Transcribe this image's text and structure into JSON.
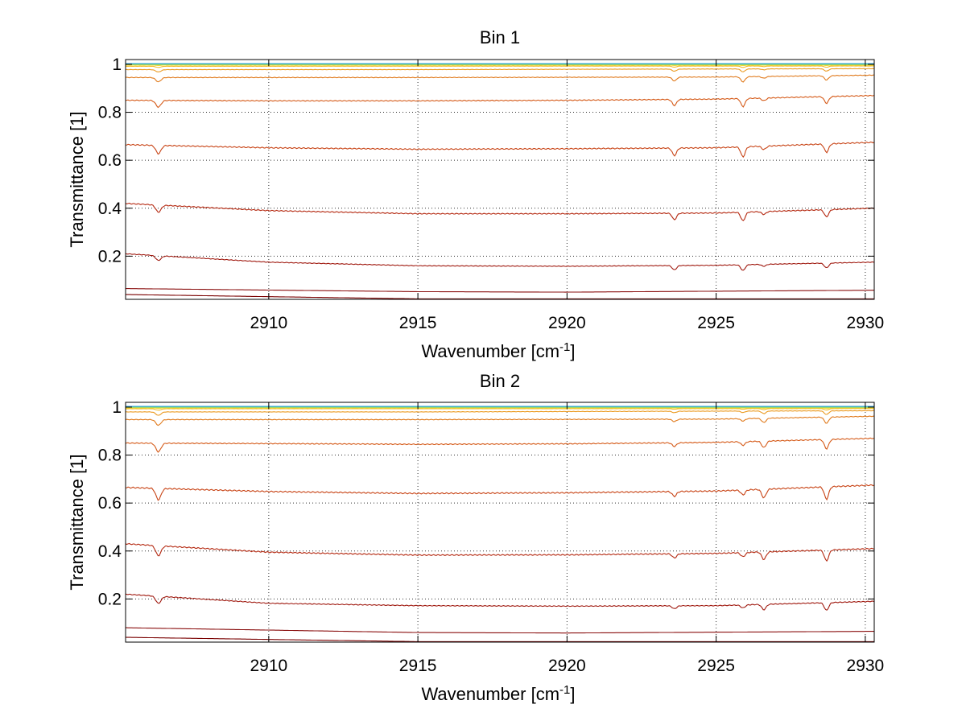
{
  "chart_data": [
    {
      "type": "line",
      "title": "Bin 1",
      "xlabel": "Wavenumber [cm",
      "xlabel_sup": "-1",
      "xlabel_end": "]",
      "ylabel": "Transmittance [1]",
      "xlim": [
        2905.2,
        2930.3
      ],
      "ylim": [
        0.02,
        1.02
      ],
      "xticks": [
        2910,
        2915,
        2920,
        2925,
        2930
      ],
      "yticks": [
        0.2,
        0.4,
        0.6,
        0.8,
        1
      ],
      "xtick_labels": [
        "2910",
        "2915",
        "2920",
        "2925",
        "2930"
      ],
      "ytick_labels": [
        "0.2",
        "0.4",
        "0.6",
        "0.8",
        "1"
      ],
      "grid": true,
      "dips": [
        {
          "x": 2906.3,
          "w": 0.12,
          "rel": 1.0
        },
        {
          "x": 2923.6,
          "w": 0.1,
          "rel": 0.9
        },
        {
          "x": 2925.9,
          "w": 0.1,
          "rel": 1.2
        },
        {
          "x": 2926.6,
          "w": 0.1,
          "rel": 0.4
        },
        {
          "x": 2928.7,
          "w": 0.1,
          "rel": 1.0
        }
      ],
      "series": [
        {
          "baseline": [
            [
              2905.2,
              0.04
            ],
            [
              2915,
              0.022
            ],
            [
              2930.3,
              0.022
            ]
          ],
          "depth": 0.0,
          "color": "#7a0000"
        },
        {
          "baseline": [
            [
              2905.2,
              0.065
            ],
            [
              2915,
              0.052
            ],
            [
              2920,
              0.05
            ],
            [
              2930.3,
              0.058
            ]
          ],
          "depth": 0.0,
          "color": "#8a0f0f"
        },
        {
          "baseline": [
            [
              2905.2,
              0.21
            ],
            [
              2910,
              0.175
            ],
            [
              2915,
              0.16
            ],
            [
              2920,
              0.158
            ],
            [
              2925,
              0.162
            ],
            [
              2930.3,
              0.175
            ]
          ],
          "depth": 0.02,
          "color": "#a01a10"
        },
        {
          "baseline": [
            [
              2905.2,
              0.42
            ],
            [
              2910,
              0.39
            ],
            [
              2915,
              0.377
            ],
            [
              2920,
              0.377
            ],
            [
              2925,
              0.38
            ],
            [
              2930.3,
              0.4
            ]
          ],
          "depth": 0.03,
          "color": "#b52a12"
        },
        {
          "baseline": [
            [
              2905.2,
              0.665
            ],
            [
              2910,
              0.652
            ],
            [
              2915,
              0.646
            ],
            [
              2920,
              0.648
            ],
            [
              2925,
              0.652
            ],
            [
              2930.3,
              0.675
            ]
          ],
          "depth": 0.035,
          "color": "#c84416"
        },
        {
          "baseline": [
            [
              2905.2,
              0.85
            ],
            [
              2910,
              0.848
            ],
            [
              2915,
              0.848
            ],
            [
              2920,
              0.85
            ],
            [
              2925,
              0.855
            ],
            [
              2930.3,
              0.87
            ]
          ],
          "depth": 0.028,
          "color": "#d55a18"
        },
        {
          "baseline": [
            [
              2905.2,
              0.945
            ],
            [
              2915,
              0.945
            ],
            [
              2925,
              0.947
            ],
            [
              2930.3,
              0.955
            ]
          ],
          "depth": 0.018,
          "color": "#e07a1c"
        },
        {
          "baseline": [
            [
              2905.2,
              0.978
            ],
            [
              2915,
              0.978
            ],
            [
              2930.3,
              0.982
            ]
          ],
          "depth": 0.01,
          "color": "#eb9a20"
        },
        {
          "baseline": [
            [
              2905.2,
              0.992
            ],
            [
              2930.3,
              0.993
            ]
          ],
          "depth": 0.005,
          "color": "#f2bb26"
        },
        {
          "baseline": [
            [
              2905.2,
              0.997
            ],
            [
              2930.3,
              0.997
            ]
          ],
          "depth": 0.002,
          "color": "#f6d830"
        },
        {
          "baseline": [
            [
              2905.2,
              0.999
            ],
            [
              2930.3,
              0.999
            ]
          ],
          "depth": 0.001,
          "color": "#d4e640"
        },
        {
          "baseline": [
            [
              2905.2,
              1.0
            ],
            [
              2930.3,
              1.0
            ]
          ],
          "depth": 0.0,
          "color": "#6fd080"
        },
        {
          "baseline": [
            [
              2905.2,
              1.003
            ],
            [
              2930.3,
              1.003
            ]
          ],
          "depth": 0.0,
          "color": "#2aa0d8"
        }
      ]
    },
    {
      "type": "line",
      "title": "Bin 2",
      "xlabel": "Wavenumber [cm",
      "xlabel_sup": "-1",
      "xlabel_end": "]",
      "ylabel": "Transmittance [1]",
      "xlim": [
        2905.2,
        2930.3
      ],
      "ylim": [
        0.02,
        1.02
      ],
      "xticks": [
        2910,
        2915,
        2920,
        2925,
        2930
      ],
      "yticks": [
        0.2,
        0.4,
        0.6,
        0.8,
        1
      ],
      "xtick_labels": [
        "2910",
        "2915",
        "2920",
        "2925",
        "2930"
      ],
      "ytick_labels": [
        "0.2",
        "0.4",
        "0.6",
        "0.8",
        "1"
      ],
      "grid": true,
      "dips": [
        {
          "x": 2906.3,
          "w": 0.12,
          "rel": 1.2
        },
        {
          "x": 2923.6,
          "w": 0.1,
          "rel": 0.5
        },
        {
          "x": 2925.9,
          "w": 0.1,
          "rel": 0.5
        },
        {
          "x": 2926.6,
          "w": 0.1,
          "rel": 0.9
        },
        {
          "x": 2928.7,
          "w": 0.1,
          "rel": 1.3
        }
      ],
      "series": [
        {
          "baseline": [
            [
              2905.2,
              0.04
            ],
            [
              2915,
              0.022
            ],
            [
              2930.3,
              0.022
            ]
          ],
          "depth": 0.0,
          "color": "#7a0000"
        },
        {
          "baseline": [
            [
              2905.2,
              0.08
            ],
            [
              2915,
              0.06
            ],
            [
              2920,
              0.058
            ],
            [
              2930.3,
              0.065
            ]
          ],
          "depth": 0.0,
          "color": "#8a0f0f"
        },
        {
          "baseline": [
            [
              2905.2,
              0.22
            ],
            [
              2910,
              0.182
            ],
            [
              2915,
              0.172
            ],
            [
              2920,
              0.17
            ],
            [
              2925,
              0.172
            ],
            [
              2930.3,
              0.19
            ]
          ],
          "depth": 0.025,
          "color": "#a01a10"
        },
        {
          "baseline": [
            [
              2905.2,
              0.43
            ],
            [
              2910,
              0.395
            ],
            [
              2915,
              0.383
            ],
            [
              2920,
              0.384
            ],
            [
              2925,
              0.39
            ],
            [
              2930.3,
              0.41
            ]
          ],
          "depth": 0.035,
          "color": "#b52a12"
        },
        {
          "baseline": [
            [
              2905.2,
              0.665
            ],
            [
              2910,
              0.648
            ],
            [
              2915,
              0.64
            ],
            [
              2920,
              0.643
            ],
            [
              2925,
              0.65
            ],
            [
              2930.3,
              0.675
            ]
          ],
          "depth": 0.04,
          "color": "#c84416"
        },
        {
          "baseline": [
            [
              2905.2,
              0.85
            ],
            [
              2910,
              0.848
            ],
            [
              2915,
              0.845
            ],
            [
              2920,
              0.847
            ],
            [
              2925,
              0.853
            ],
            [
              2930.3,
              0.87
            ]
          ],
          "depth": 0.03,
          "color": "#d55a18"
        },
        {
          "baseline": [
            [
              2905.2,
              0.948
            ],
            [
              2915,
              0.948
            ],
            [
              2925,
              0.95
            ],
            [
              2930.3,
              0.962
            ]
          ],
          "depth": 0.02,
          "color": "#e07a1c"
        },
        {
          "baseline": [
            [
              2905.2,
              0.98
            ],
            [
              2915,
              0.98
            ],
            [
              2930.3,
              0.985
            ]
          ],
          "depth": 0.012,
          "color": "#eb9a20"
        },
        {
          "baseline": [
            [
              2905.2,
              0.993
            ],
            [
              2930.3,
              0.994
            ]
          ],
          "depth": 0.005,
          "color": "#f2bb26"
        },
        {
          "baseline": [
            [
              2905.2,
              0.997
            ],
            [
              2930.3,
              0.997
            ]
          ],
          "depth": 0.002,
          "color": "#f6d830"
        },
        {
          "baseline": [
            [
              2905.2,
              0.999
            ],
            [
              2930.3,
              0.999
            ]
          ],
          "depth": 0.001,
          "color": "#d4e640"
        },
        {
          "baseline": [
            [
              2905.2,
              1.0
            ],
            [
              2930.3,
              1.0
            ]
          ],
          "depth": 0.0,
          "color": "#6fd080"
        },
        {
          "baseline": [
            [
              2905.2,
              1.003
            ],
            [
              2930.3,
              1.003
            ]
          ],
          "depth": 0.0,
          "color": "#2aa0d8"
        }
      ]
    }
  ]
}
